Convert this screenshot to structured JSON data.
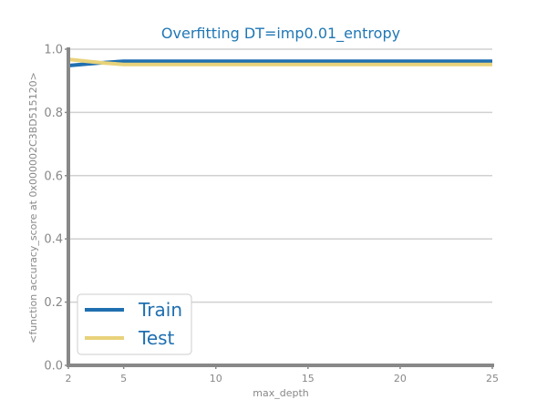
{
  "chart_data": {
    "type": "line",
    "title": "Overfitting DT=imp0.01_entropy",
    "xlabel": "max_depth",
    "ylabel": "<function accuracy_score at 0x000002C3BD515120>",
    "xlim": [
      2,
      25
    ],
    "ylim": [
      0.0,
      1.0
    ],
    "xticks": [
      2,
      5,
      10,
      15,
      20,
      25
    ],
    "xtick_labels": [
      "2",
      "5",
      "10",
      "15",
      "20",
      "25"
    ],
    "yticks": [
      0.0,
      0.2,
      0.4,
      0.6,
      0.8,
      1.0
    ],
    "ytick_labels": [
      "0.0",
      "0.2",
      "0.4",
      "0.6",
      "0.8",
      "1.0"
    ],
    "grid": "horizontal",
    "legend_position": "bottom-left",
    "x": [
      2,
      3,
      4,
      5,
      6,
      7,
      8,
      9,
      10,
      11,
      12,
      13,
      14,
      15,
      16,
      17,
      18,
      19,
      20,
      21,
      22,
      23,
      24,
      25
    ],
    "series": [
      {
        "name": "Train",
        "color": "#1f6fb0",
        "values": [
          0.948,
          0.953,
          0.958,
          0.962,
          0.962,
          0.962,
          0.962,
          0.962,
          0.962,
          0.962,
          0.962,
          0.962,
          0.962,
          0.962,
          0.962,
          0.962,
          0.962,
          0.962,
          0.962,
          0.962,
          0.962,
          0.962,
          0.962,
          0.962
        ]
      },
      {
        "name": "Test",
        "color": "#e8d27a",
        "values": [
          0.968,
          0.962,
          0.956,
          0.952,
          0.952,
          0.952,
          0.952,
          0.952,
          0.952,
          0.952,
          0.952,
          0.952,
          0.952,
          0.952,
          0.952,
          0.952,
          0.952,
          0.952,
          0.952,
          0.952,
          0.952,
          0.952,
          0.952,
          0.952
        ]
      }
    ]
  }
}
